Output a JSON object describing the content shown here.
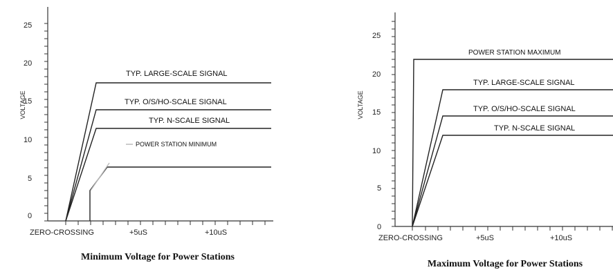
{
  "chart_data": [
    {
      "type": "line",
      "title": "Minimum Voltage for Power Stations",
      "ylabel": "VOLTAGE",
      "ylim": [
        0,
        27
      ],
      "yticks": [
        "0",
        "5",
        "10",
        "15",
        "20",
        "25"
      ],
      "xticks": [
        "ZERO-CROSSING",
        "+5uS",
        "+10uS"
      ],
      "series": [
        {
          "name": "TYP. LARGE-SCALE SIGNAL",
          "plateau": 18
        },
        {
          "name": "TYP. O/S/HO-SCALE SIGNAL",
          "plateau": 14.5
        },
        {
          "name": "TYP. N-SCALE SIGNAL",
          "plateau": 12
        },
        {
          "name": "POWER STATION MINIMUM",
          "plateau": 7
        }
      ]
    },
    {
      "type": "line",
      "title": "Maximum Voltage for Power Stations",
      "ylabel": "VOLTAGE",
      "ylim": [
        0,
        27
      ],
      "yticks": [
        "0",
        "5",
        "10",
        "15",
        "20",
        "25"
      ],
      "xticks": [
        "ZERO-CROSSING",
        "+5uS",
        "+10uS"
      ],
      "series": [
        {
          "name": "POWER STATION MAXIMUM",
          "plateau": 22
        },
        {
          "name": "TYP. LARGE-SCALE SIGNAL",
          "plateau": 18
        },
        {
          "name": "TYP. O/S/HO-SCALE SIGNAL",
          "plateau": 14.5
        },
        {
          "name": "TYP. N-SCALE SIGNAL",
          "plateau": 12
        }
      ]
    }
  ]
}
